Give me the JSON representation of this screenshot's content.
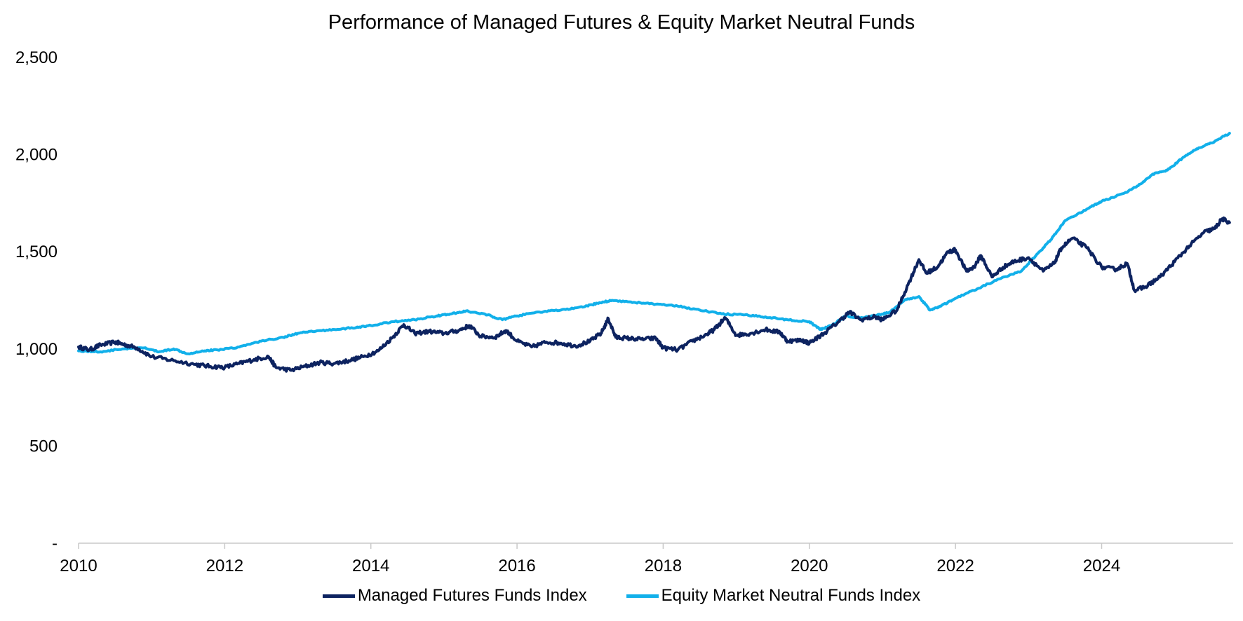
{
  "chart_data": {
    "type": "line",
    "title": "Performance of Managed Futures & Equity Market Neutral Funds",
    "xlabel": "",
    "ylabel": "",
    "xlim": [
      2010,
      2025.8
    ],
    "ylim": [
      0,
      2500
    ],
    "x_ticks": [
      2010,
      2012,
      2014,
      2016,
      2018,
      2020,
      2022,
      2024
    ],
    "x_tick_labels": [
      "2010",
      "2012",
      "2014",
      "2016",
      "2018",
      "2020",
      "2022",
      "2024"
    ],
    "y_ticks": [
      0,
      500,
      1000,
      1500,
      2000,
      2500
    ],
    "y_tick_labels": [
      "-",
      "500",
      "1,000",
      "1,500",
      "2,000",
      "2,500"
    ],
    "grid": false,
    "legend_position": "bottom",
    "series": [
      {
        "name": "Managed Futures Funds Index",
        "color": "#0d2360",
        "x": [
          2010.0,
          2010.15,
          2010.3,
          2010.5,
          2010.6,
          2010.8,
          2011.0,
          2011.3,
          2011.6,
          2011.8,
          2012.0,
          2012.2,
          2012.4,
          2012.6,
          2012.7,
          2012.9,
          2013.1,
          2013.3,
          2013.5,
          2013.7,
          2013.9,
          2014.1,
          2014.3,
          2014.45,
          2014.6,
          2014.8,
          2015.0,
          2015.2,
          2015.35,
          2015.5,
          2015.7,
          2015.85,
          2016.0,
          2016.2,
          2016.4,
          2016.6,
          2016.8,
          2017.0,
          2017.15,
          2017.25,
          2017.35,
          2017.5,
          2017.7,
          2017.9,
          2018.0,
          2018.2,
          2018.4,
          2018.6,
          2018.7,
          2018.85,
          2019.0,
          2019.2,
          2019.4,
          2019.6,
          2019.7,
          2019.9,
          2020.0,
          2020.2,
          2020.4,
          2020.55,
          2020.7,
          2020.9,
          2021.0,
          2021.2,
          2021.35,
          2021.5,
          2021.6,
          2021.75,
          2021.9,
          2022.0,
          2022.15,
          2022.25,
          2022.35,
          2022.5,
          2022.65,
          2022.8,
          2023.0,
          2023.2,
          2023.35,
          2023.45,
          2023.6,
          2023.8,
          2024.0,
          2024.2,
          2024.35,
          2024.45,
          2024.6,
          2024.8,
          2025.0,
          2025.2,
          2025.4,
          2025.55,
          2025.65,
          2025.75
        ],
        "values": [
          1010,
          995,
          1020,
          1035,
          1025,
          1005,
          960,
          940,
          920,
          910,
          905,
          925,
          945,
          960,
          905,
          890,
          910,
          930,
          925,
          940,
          960,
          990,
          1060,
          1125,
          1080,
          1090,
          1080,
          1095,
          1120,
          1065,
          1060,
          1095,
          1040,
          1010,
          1035,
          1030,
          1015,
          1040,
          1080,
          1155,
          1060,
          1055,
          1050,
          1055,
          1005,
          995,
          1040,
          1075,
          1100,
          1160,
          1070,
          1080,
          1100,
          1085,
          1040,
          1045,
          1030,
          1080,
          1140,
          1190,
          1150,
          1165,
          1150,
          1200,
          1330,
          1460,
          1390,
          1420,
          1500,
          1510,
          1400,
          1420,
          1480,
          1370,
          1420,
          1450,
          1470,
          1400,
          1440,
          1520,
          1570,
          1520,
          1420,
          1410,
          1440,
          1300,
          1320,
          1370,
          1450,
          1530,
          1600,
          1620,
          1670,
          1650
        ]
      },
      {
        "name": "Equity Market Neutral Funds Index",
        "color": "#12b0ea",
        "x": [
          2010.0,
          2010.3,
          2010.6,
          2010.9,
          2011.1,
          2011.3,
          2011.5,
          2011.7,
          2011.9,
          2012.2,
          2012.5,
          2012.8,
          2013.0,
          2013.2,
          2013.5,
          2013.8,
          2014.0,
          2014.3,
          2014.6,
          2014.9,
          2015.1,
          2015.3,
          2015.6,
          2015.8,
          2016.0,
          2016.3,
          2016.6,
          2016.9,
          2017.1,
          2017.3,
          2017.6,
          2017.9,
          2018.2,
          2018.5,
          2018.8,
          2019.1,
          2019.4,
          2019.7,
          2020.0,
          2020.15,
          2020.3,
          2020.5,
          2020.7,
          2020.9,
          2021.1,
          2021.3,
          2021.5,
          2021.65,
          2021.8,
          2022.0,
          2022.3,
          2022.6,
          2022.9,
          2023.1,
          2023.3,
          2023.5,
          2023.8,
          2024.0,
          2024.3,
          2024.5,
          2024.7,
          2024.9,
          2025.1,
          2025.3,
          2025.5,
          2025.75
        ],
        "values": [
          990,
          985,
          1000,
          1005,
          985,
          1000,
          975,
          990,
          995,
          1010,
          1040,
          1060,
          1080,
          1090,
          1100,
          1110,
          1120,
          1140,
          1150,
          1170,
          1180,
          1195,
          1175,
          1150,
          1170,
          1190,
          1200,
          1215,
          1235,
          1250,
          1240,
          1230,
          1220,
          1200,
          1180,
          1175,
          1165,
          1150,
          1140,
          1100,
          1120,
          1170,
          1160,
          1170,
          1190,
          1250,
          1270,
          1200,
          1220,
          1260,
          1310,
          1360,
          1400,
          1480,
          1560,
          1660,
          1720,
          1760,
          1800,
          1840,
          1900,
          1920,
          1980,
          2030,
          2060,
          2110
        ]
      }
    ]
  }
}
